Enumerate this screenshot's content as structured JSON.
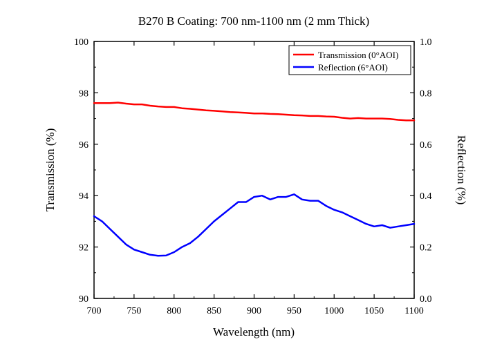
{
  "chart_data": {
    "type": "line",
    "title": "B270 B Coating: 700 nm-1100 nm (2 mm Thick)",
    "xlabel": "Wavelength (nm)",
    "ylabel_left": "Transmission (%)",
    "ylabel_right": "Reflection (%)",
    "xlim": [
      700,
      1100
    ],
    "ylim_left": [
      90,
      100
    ],
    "ylim_right": [
      0.0,
      1.0
    ],
    "x_ticks": [
      700,
      750,
      800,
      850,
      900,
      950,
      1000,
      1050,
      1100
    ],
    "y_left_ticks": [
      "90",
      "92",
      "94",
      "96",
      "98",
      "100"
    ],
    "y_right_ticks": [
      "0.0",
      "0.2",
      "0.4",
      "0.6",
      "0.8",
      "1.0"
    ],
    "grid": false,
    "legend_position": "top-right",
    "series": [
      {
        "name": "Transmission (0°AOI)",
        "axis": "left",
        "color": "#ff0000",
        "x": [
          700,
          710,
          720,
          730,
          740,
          750,
          760,
          770,
          780,
          790,
          800,
          810,
          820,
          830,
          840,
          850,
          860,
          870,
          880,
          890,
          900,
          910,
          920,
          930,
          940,
          950,
          960,
          970,
          980,
          990,
          1000,
          1010,
          1020,
          1030,
          1040,
          1050,
          1060,
          1070,
          1080,
          1090,
          1100
        ],
        "y": [
          97.6,
          97.6,
          97.6,
          97.62,
          97.58,
          97.55,
          97.55,
          97.5,
          97.47,
          97.45,
          97.45,
          97.4,
          97.38,
          97.35,
          97.32,
          97.3,
          97.28,
          97.25,
          97.24,
          97.22,
          97.2,
          97.2,
          97.18,
          97.17,
          97.15,
          97.13,
          97.12,
          97.1,
          97.1,
          97.08,
          97.07,
          97.03,
          97.0,
          97.02,
          97.0,
          97.0,
          97.0,
          96.98,
          96.95,
          96.93,
          96.93
        ]
      },
      {
        "name": "Reflection (6°AOI)",
        "axis": "right",
        "color": "#0000ff",
        "x": [
          700,
          710,
          720,
          730,
          740,
          750,
          760,
          770,
          780,
          790,
          800,
          810,
          820,
          830,
          840,
          850,
          860,
          870,
          880,
          890,
          900,
          910,
          920,
          930,
          940,
          950,
          960,
          970,
          980,
          990,
          1000,
          1010,
          1020,
          1030,
          1040,
          1050,
          1060,
          1070,
          1080,
          1090,
          1100
        ],
        "y": [
          0.32,
          0.3,
          0.27,
          0.24,
          0.21,
          0.19,
          0.18,
          0.17,
          0.166,
          0.167,
          0.18,
          0.2,
          0.215,
          0.24,
          0.27,
          0.3,
          0.325,
          0.35,
          0.375,
          0.375,
          0.395,
          0.4,
          0.385,
          0.395,
          0.395,
          0.405,
          0.385,
          0.38,
          0.38,
          0.36,
          0.345,
          0.335,
          0.32,
          0.305,
          0.29,
          0.28,
          0.285,
          0.275,
          0.28,
          0.285,
          0.29
        ]
      }
    ]
  }
}
